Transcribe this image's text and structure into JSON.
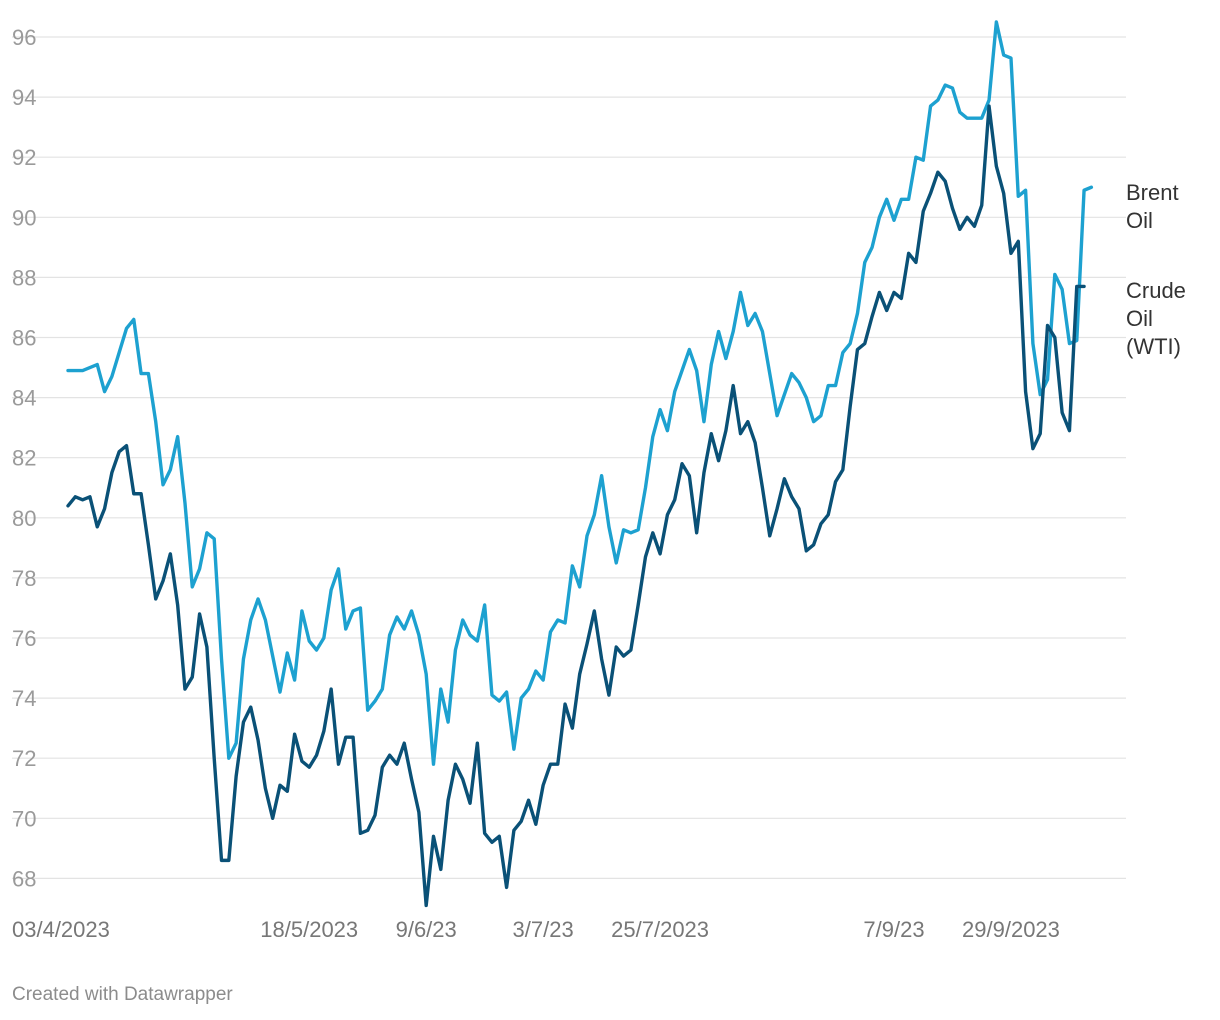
{
  "credit": "Created with Datawrapper",
  "chart_data": {
    "type": "line",
    "title": "",
    "xlabel": "",
    "ylabel": "",
    "ylim": [
      67,
      96.5
    ],
    "y_ticks": [
      68,
      70,
      72,
      74,
      76,
      78,
      80,
      82,
      84,
      86,
      88,
      90,
      92,
      94,
      96
    ],
    "x_tick_labels": [
      "03/4/2023",
      "18/5/2023",
      "9/6/23",
      "3/7/23",
      "25/7/2023",
      "7/9/23",
      "29/9/2023"
    ],
    "x_tick_index": [
      0,
      33,
      49,
      65,
      81,
      113,
      129
    ],
    "x_count": 143,
    "grid": true,
    "legend": "right, inline at line ends",
    "series": [
      {
        "name": "Brent Oil",
        "color": "#1da1d0",
        "values": [
          84.9,
          84.9,
          84.9,
          85.0,
          85.1,
          84.2,
          84.7,
          85.5,
          86.3,
          86.6,
          84.8,
          84.8,
          83.2,
          81.1,
          81.6,
          82.7,
          80.5,
          77.7,
          78.3,
          79.5,
          79.3,
          75.3,
          72.0,
          72.5,
          75.3,
          76.6,
          77.3,
          76.6,
          75.4,
          74.2,
          75.5,
          74.6,
          76.9,
          75.9,
          75.6,
          76.0,
          77.6,
          78.3,
          76.3,
          76.9,
          77.0,
          73.6,
          73.9,
          74.3,
          76.1,
          76.7,
          76.3,
          76.9,
          76.1,
          74.8,
          71.8,
          74.3,
          73.2,
          75.6,
          76.6,
          76.1,
          75.9,
          77.1,
          74.1,
          73.9,
          74.2,
          72.3,
          74.0,
          74.3,
          74.9,
          74.6,
          76.2,
          76.6,
          76.5,
          78.4,
          77.7,
          79.4,
          80.1,
          81.4,
          79.7,
          78.5,
          79.6,
          79.5,
          79.6,
          81.0,
          82.7,
          83.6,
          82.9,
          84.2,
          84.9,
          85.6,
          84.9,
          83.2,
          85.1,
          86.2,
          85.3,
          86.2,
          87.5,
          86.4,
          86.8,
          86.2,
          84.8,
          83.4,
          84.1,
          84.8,
          84.5,
          84.0,
          83.2,
          83.4,
          84.4,
          84.4,
          85.5,
          85.8,
          86.8,
          88.5,
          89.0,
          90.0,
          90.6,
          89.9,
          90.6,
          90.6,
          92.0,
          91.9,
          93.7,
          93.9,
          94.4,
          94.3,
          93.5,
          93.3,
          93.3,
          93.3,
          93.9,
          96.5,
          95.4,
          95.3,
          90.7,
          90.9,
          85.8,
          84.1,
          84.6,
          88.1,
          87.6,
          85.8,
          85.9,
          90.9,
          91.0
        ]
      },
      {
        "name": "Crude Oil (WTI)",
        "color": "#0a5177",
        "values": [
          80.4,
          80.7,
          80.6,
          80.7,
          79.7,
          80.3,
          81.5,
          82.2,
          82.4,
          80.8,
          80.8,
          79.1,
          77.3,
          77.9,
          78.8,
          77.1,
          74.3,
          74.7,
          76.8,
          75.7,
          72.0,
          68.6,
          68.6,
          71.4,
          73.2,
          73.7,
          72.6,
          71.0,
          70.0,
          71.1,
          70.9,
          72.8,
          71.9,
          71.7,
          72.1,
          72.9,
          74.3,
          71.8,
          72.7,
          72.7,
          69.5,
          69.6,
          70.1,
          71.7,
          72.1,
          71.8,
          72.5,
          71.3,
          70.2,
          67.1,
          69.4,
          68.3,
          70.6,
          71.8,
          71.3,
          70.5,
          72.5,
          69.5,
          69.2,
          69.4,
          67.7,
          69.6,
          69.9,
          70.6,
          69.8,
          71.1,
          71.8,
          71.8,
          73.8,
          73.0,
          74.8,
          75.8,
          76.9,
          75.3,
          74.1,
          75.7,
          75.4,
          75.6,
          77.1,
          78.7,
          79.5,
          78.8,
          80.1,
          80.6,
          81.8,
          81.4,
          79.5,
          81.5,
          82.8,
          81.9,
          82.9,
          84.4,
          82.8,
          83.2,
          82.5,
          81.0,
          79.4,
          80.3,
          81.3,
          80.7,
          80.3,
          78.9,
          79.1,
          79.8,
          80.1,
          81.2,
          81.6,
          83.7,
          85.6,
          85.8,
          86.7,
          87.5,
          86.9,
          87.5,
          87.3,
          88.8,
          88.5,
          90.2,
          90.8,
          91.5,
          91.2,
          90.3,
          89.6,
          90.0,
          89.7,
          90.4,
          93.7,
          91.7,
          90.8,
          88.8,
          89.2,
          84.2,
          82.3,
          82.8,
          86.4,
          86.0,
          83.5,
          82.9,
          87.7,
          87.7
        ]
      }
    ]
  }
}
